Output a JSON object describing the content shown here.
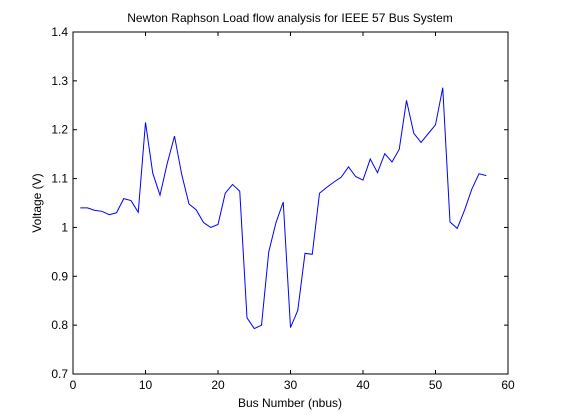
{
  "chart_data": {
    "type": "line",
    "title": "Newton Raphson Load flow analysis for IEEE 57 Bus System",
    "xlabel": "Bus Number (nbus)",
    "ylabel": "Voltage (V)",
    "xlim": [
      0,
      60
    ],
    "ylim": [
      0.7,
      1.4
    ],
    "xticks": [
      0,
      10,
      20,
      30,
      40,
      50,
      60
    ],
    "yticks": [
      0.7,
      0.8,
      0.9,
      1.0,
      1.1,
      1.2,
      1.3,
      1.4
    ],
    "xtick_labels": [
      "0",
      "10",
      "20",
      "30",
      "40",
      "50",
      "60"
    ],
    "ytick_labels": [
      "0.7",
      "0.8",
      "0.9",
      "1",
      "1.1",
      "1.2",
      "1.3",
      "1.4"
    ],
    "grid": false,
    "line_color": "#0000ff",
    "x": [
      1,
      2,
      3,
      4,
      5,
      6,
      7,
      8,
      9,
      10,
      11,
      12,
      13,
      14,
      15,
      16,
      17,
      18,
      19,
      20,
      21,
      22,
      23,
      24,
      25,
      26,
      27,
      28,
      29,
      30,
      31,
      32,
      33,
      34,
      35,
      36,
      37,
      38,
      39,
      40,
      41,
      42,
      43,
      44,
      45,
      46,
      47,
      48,
      49,
      50,
      51,
      52,
      53,
      54,
      55,
      56,
      57
    ],
    "y": [
      1.04,
      1.04,
      1.035,
      1.033,
      1.026,
      1.03,
      1.059,
      1.055,
      1.031,
      1.215,
      1.111,
      1.066,
      1.131,
      1.187,
      1.108,
      1.048,
      1.036,
      1.01,
      1.0,
      1.006,
      1.07,
      1.088,
      1.074,
      0.815,
      0.793,
      0.8,
      0.95,
      1.01,
      1.052,
      0.795,
      0.83,
      0.947,
      0.945,
      1.07,
      1.082,
      1.093,
      1.103,
      1.124,
      1.104,
      1.097,
      1.14,
      1.112,
      1.151,
      1.134,
      1.16,
      1.26,
      1.193,
      1.174,
      1.192,
      1.21,
      1.286,
      1.011,
      0.998,
      1.035,
      1.078,
      1.11,
      1.106
    ]
  }
}
